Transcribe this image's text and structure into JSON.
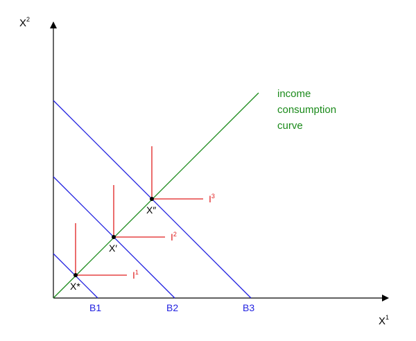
{
  "axes": {
    "x_label": "X",
    "x_sup": "1",
    "y_label": "X",
    "y_sup": "2"
  },
  "budget_lines": {
    "color": "#1f1fe0",
    "labels": [
      "B1",
      "B2",
      "B3"
    ]
  },
  "icc": {
    "color": "#1a8a1a",
    "label_lines": [
      "income",
      "consumption",
      "curve"
    ]
  },
  "indifference": {
    "color": "#e01f1f",
    "labels": [
      "I",
      "I",
      "I"
    ],
    "sups": [
      "1",
      "2",
      "3"
    ]
  },
  "points": {
    "labels": [
      "X*",
      "X′",
      "X″"
    ]
  }
}
